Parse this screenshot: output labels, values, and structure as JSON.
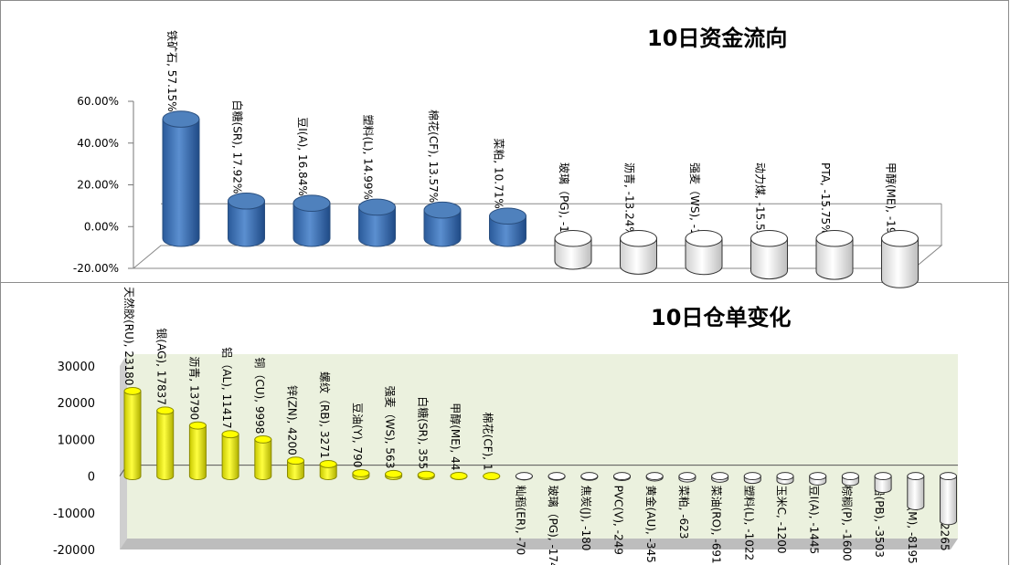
{
  "charts": [
    {
      "title": "10日资金流向",
      "chart_data": {
        "type": "bar",
        "title": "10日资金流向",
        "ylim": [
          -0.2,
          0.6
        ],
        "yticks": [
          "60.00%",
          "40.00%",
          "20.00%",
          "0.00%",
          "-20.00%"
        ],
        "categories": [
          "铁矿石",
          "白糖(SR)",
          "豆Ⅰ(A)",
          "塑料(L)",
          "棉花(CF)",
          "菜粕",
          "玻璃（PG)",
          "沥青",
          "强麦（WS)",
          "动力煤",
          "PTA",
          "甲醇(ME)"
        ],
        "values": [
          0.5715,
          0.1792,
          0.1684,
          0.1499,
          0.1357,
          0.1071,
          -0.109,
          -0.1324,
          -0.1342,
          -0.1553,
          -0.1575,
          -0.1975
        ],
        "labels": [
          "铁矿石, 57.15%",
          "白糖(SR), 17.92%",
          "豆Ⅰ(A), 16.84%",
          "塑料(L), 14.99%",
          "棉花(CF), 13.57%",
          "菜粕, 10.71%",
          "玻璃（PG), -10.90%",
          "沥青, -13.24%",
          "强麦（WS), -13.42%",
          "动力煤, -15.53%",
          "PTA, -15.75%",
          "甲醇(ME), -19.75%"
        ],
        "colors": {
          "positive": "#4f81bd",
          "negative": "#ffffff"
        }
      }
    },
    {
      "title": "10日仓单变化",
      "chart_data": {
        "type": "bar",
        "title": "10日仓单变化",
        "ylim": [
          -20000,
          30000
        ],
        "yticks": [
          "30000",
          "20000",
          "10000",
          "0",
          "-10000",
          "-20000"
        ],
        "categories": [
          "天然胶(RU)",
          "银(AG)",
          "沥青",
          "铝（AL)",
          "铜（CU)",
          "锌(ZN)",
          "螺纹（RB)",
          "豆油(Y)",
          "强麦（WS)",
          "白糖(SR)",
          "甲醇(ME)",
          "棉花(CF)",
          "籼稻(ER)",
          "玻璃（PG)",
          "焦炭(J)",
          "PVC(V)",
          "黄金(AU)",
          "菜粕",
          "菜油(RO)",
          "塑料(L)",
          "玉米C",
          "豆Ⅰ(A)",
          "棕榈(P)",
          "铅(PB)",
          "豆粕(M)",
          "PTA"
        ],
        "values": [
          23180,
          17837,
          13790,
          11417,
          9998,
          4200,
          3271,
          790,
          563,
          355,
          44,
          1,
          -70,
          -174,
          -180,
          -249,
          -345,
          -623,
          -691,
          -1022,
          -1200,
          -1445,
          -1600,
          -3503,
          -8195,
          -12265
        ],
        "labels": [
          "天然胶(RU), 23180",
          "银(AG), 17837",
          "沥青, 13790",
          "铝（AL), 11417",
          "铜（CU), 9998",
          "锌(ZN), 4200",
          "螺纹（RB), 3271",
          "豆油(Y), 790",
          "强麦（WS), 563",
          "白糖(SR), 355",
          "甲醇(ME), 44",
          "棉花(CF), 1",
          "籼稻(ER), -70",
          "玻璃（PG), -174",
          "焦炭(J), -180",
          "PVC(V), -249",
          "黄金(AU), -345",
          "菜粕, -623",
          "菜油(RO), -691",
          "塑料(L), -1022",
          "玉米C, -1200",
          "豆Ⅰ(A), -1445",
          "棕榈(P), -1600",
          "铅(PB), -3503",
          "豆粕(M), -8195",
          "PTA, -12265"
        ],
        "colors": {
          "positive": "#ffff00",
          "negative": "#ffffff",
          "wall": "#ebf1de"
        }
      }
    }
  ]
}
